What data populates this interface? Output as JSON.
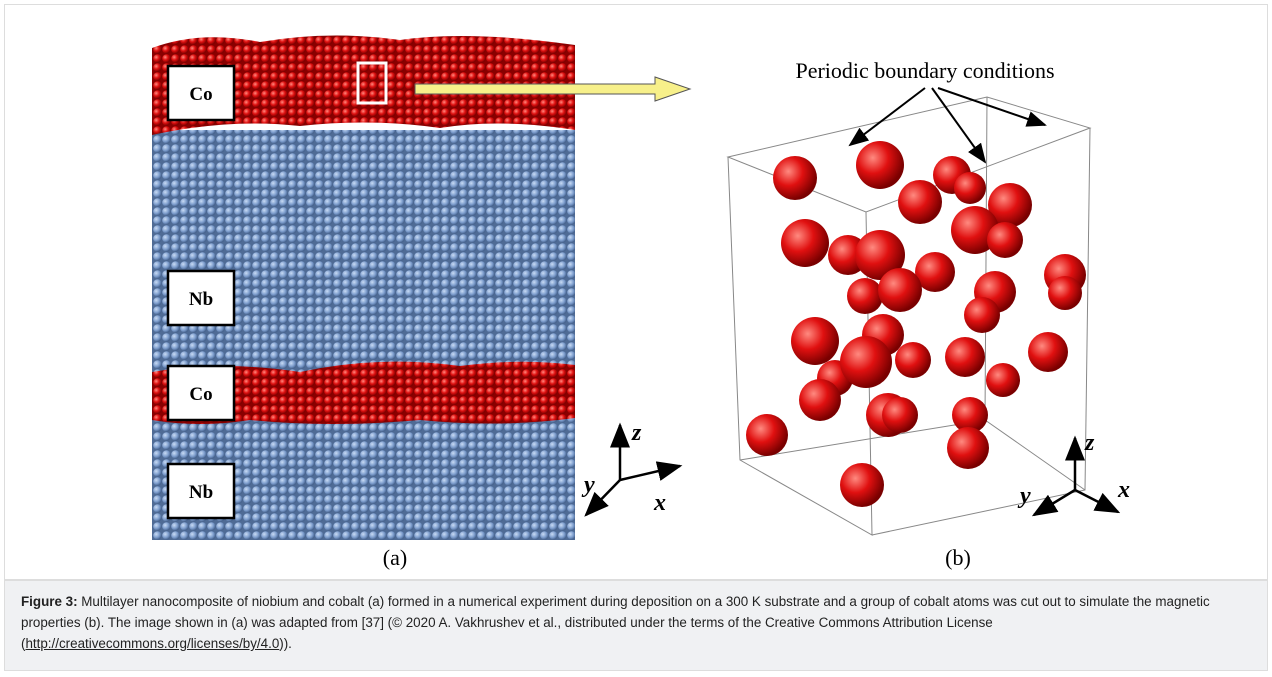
{
  "figure": {
    "panel_a": {
      "labels": [
        "Co",
        "Nb",
        "Co",
        "Nb"
      ],
      "caption": "(a)",
      "axes": {
        "z": "z",
        "y": "y",
        "x": "x"
      }
    },
    "panel_b": {
      "title": "Periodic boundary conditions",
      "caption": "(b)",
      "axes": {
        "z": "z",
        "y": "y",
        "x": "x"
      }
    }
  },
  "caption": {
    "label": "Figure 3:",
    "text": " Multilayer nanocomposite of niobium and cobalt (a) formed in a numerical experiment during deposition on a 300 K substrate and a group of cobalt atoms was cut out to simulate the magnetic properties (b). The image shown in (a) was adapted from [37] (© 2020 A. Vakhrushev et al., distributed under the terms of the Creative Commons Attribution License (",
    "link": "http://creativecommons.org/licenses/by/4.0",
    "text_after": "))."
  }
}
